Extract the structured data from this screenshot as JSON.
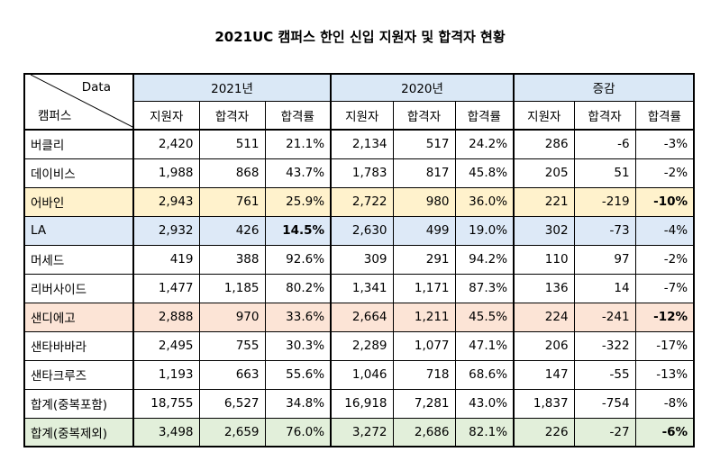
{
  "title": "2021UC 캠퍼스 한인 신입 지원자 및 합격자 현황",
  "corner": {
    "top": "Data",
    "bottom": "캠퍼스"
  },
  "groups": [
    "2021년",
    "2020년",
    "증감"
  ],
  "subheaders": [
    "지원자",
    "합격자",
    "합격률",
    "지원자",
    "합격자",
    "합격률",
    "지원자",
    "합격자",
    "합격률"
  ],
  "rows": [
    {
      "name": "버클리",
      "cells": [
        "2,420",
        "511",
        "21.1%",
        "2,134",
        "517",
        "24.2%",
        "286",
        "-6",
        "-3%"
      ],
      "bold": []
    },
    {
      "name": "데이비스",
      "cells": [
        "1,988",
        "868",
        "43.7%",
        "1,783",
        "817",
        "45.8%",
        "205",
        "51",
        "-2%"
      ],
      "bold": []
    },
    {
      "name": "어바인",
      "cells": [
        "2,943",
        "761",
        "25.9%",
        "2,722",
        "980",
        "36.0%",
        "221",
        "-219",
        "-10%"
      ],
      "bold": [
        8
      ],
      "highlight": "#fff2cc"
    },
    {
      "name": "LA",
      "cells": [
        "2,932",
        "426",
        "14.5%",
        "2,630",
        "499",
        "19.0%",
        "302",
        "-73",
        "-4%"
      ],
      "bold": [
        2
      ],
      "highlight": "#dde9f7"
    },
    {
      "name": "머세드",
      "cells": [
        "419",
        "388",
        "92.6%",
        "309",
        "291",
        "94.2%",
        "110",
        "97",
        "-2%"
      ],
      "bold": []
    },
    {
      "name": "리버사이드",
      "cells": [
        "1,477",
        "1,185",
        "80.2%",
        "1,341",
        "1,171",
        "87.3%",
        "136",
        "14",
        "-7%"
      ],
      "bold": []
    },
    {
      "name": "샌디에고",
      "cells": [
        "2,888",
        "970",
        "33.6%",
        "2,664",
        "1,211",
        "45.5%",
        "224",
        "-241",
        "-12%"
      ],
      "bold": [
        8
      ],
      "highlight": "#fce4d6"
    },
    {
      "name": "샌타바바라",
      "cells": [
        "2,495",
        "755",
        "30.3%",
        "2,289",
        "1,077",
        "47.1%",
        "206",
        "-322",
        "-17%"
      ],
      "bold": []
    },
    {
      "name": "샌타크루즈",
      "cells": [
        "1,193",
        "663",
        "55.6%",
        "1,046",
        "718",
        "68.6%",
        "147",
        "-55",
        "-13%"
      ],
      "bold": []
    },
    {
      "name": "합계(중복포함)",
      "cells": [
        "18,755",
        "6,527",
        "34.8%",
        "16,918",
        "7,281",
        "43.0%",
        "1,837",
        "-754",
        "-8%"
      ],
      "bold": []
    },
    {
      "name": "합계(중복제외)",
      "cells": [
        "3,498",
        "2,659",
        "76.0%",
        "3,272",
        "2,686",
        "82.1%",
        "226",
        "-27",
        "-6%"
      ],
      "bold": [
        8
      ],
      "highlight": "#e2efda"
    }
  ]
}
